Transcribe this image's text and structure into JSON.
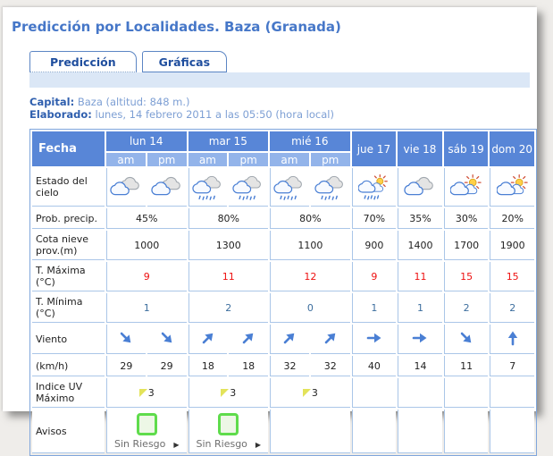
{
  "page": {
    "title": "Predicción por Localidades. Baza (Granada)"
  },
  "tabs": {
    "prediccion": "Predicción",
    "graficas": "Gráficas"
  },
  "info": {
    "capital_label": "Capital:",
    "capital_value": "Baza (altitud: 848 m.)",
    "elaborado_label": "Elaborado:",
    "elaborado_value": "lunes, 14 febrero 2011 a las 05:50 (hora local)"
  },
  "table": {
    "fecha_header": "Fecha",
    "days": [
      "lun 14",
      "mar 15",
      "mié 16",
      "jue 17",
      "vie 18",
      "sáb 19",
      "dom 20"
    ],
    "am_label": "am",
    "pm_label": "pm",
    "rows": {
      "sky": {
        "label": "Estado del cielo",
        "icons": [
          "cloudy",
          "cloudy",
          "rain",
          "rain",
          "rain",
          "rain",
          "sun-rain",
          "cloudy",
          "sun-cloud",
          "sun-cloud"
        ]
      },
      "precip": {
        "label": "Prob. precip.",
        "values": [
          "45%",
          "80%",
          "80%",
          "70%",
          "35%",
          "30%",
          "20%"
        ]
      },
      "snow": {
        "label": "Cota nieve prov.(m)",
        "values": [
          "1000",
          "1300",
          "1100",
          "900",
          "1400",
          "1700",
          "1900"
        ]
      },
      "tmax": {
        "label": "T. Máxima (°C)",
        "values": [
          "9",
          "11",
          "12",
          "9",
          "11",
          "15",
          "15"
        ]
      },
      "tmin": {
        "label": "T. Mínima (°C)",
        "values": [
          "1",
          "2",
          "0",
          "1",
          "1",
          "2",
          "2"
        ]
      },
      "wind": {
        "label": "Viento",
        "dirs": [
          "SE",
          "SE",
          "NE",
          "NE",
          "NE",
          "NE",
          "E",
          "E",
          "SE",
          "N"
        ]
      },
      "speed": {
        "label": "(km/h)",
        "values": [
          "29",
          "29",
          "18",
          "18",
          "32",
          "32",
          "40",
          "14",
          "11",
          "7"
        ]
      },
      "uv": {
        "label": "Indice UV Máximo",
        "values": [
          "3",
          "3",
          "3"
        ]
      },
      "warnings": {
        "label": "Avisos",
        "values": [
          "Sin Riesgo",
          "Sin Riesgo"
        ],
        "arrow": "▶"
      }
    }
  },
  "colors": {
    "title_blue": "#4677c8",
    "header_blue": "#5886d7",
    "subheader_blue": "#93b4ea",
    "band_blue": "#dbe7f6",
    "border_blue": "#aac6e8",
    "tmax_red": "#ee1111",
    "tmin_blue": "#3c6e9e",
    "wind_blue": "#4a7fd4",
    "risk_green": "#5fdc4c",
    "uv_yellow": "#e3e35a"
  }
}
